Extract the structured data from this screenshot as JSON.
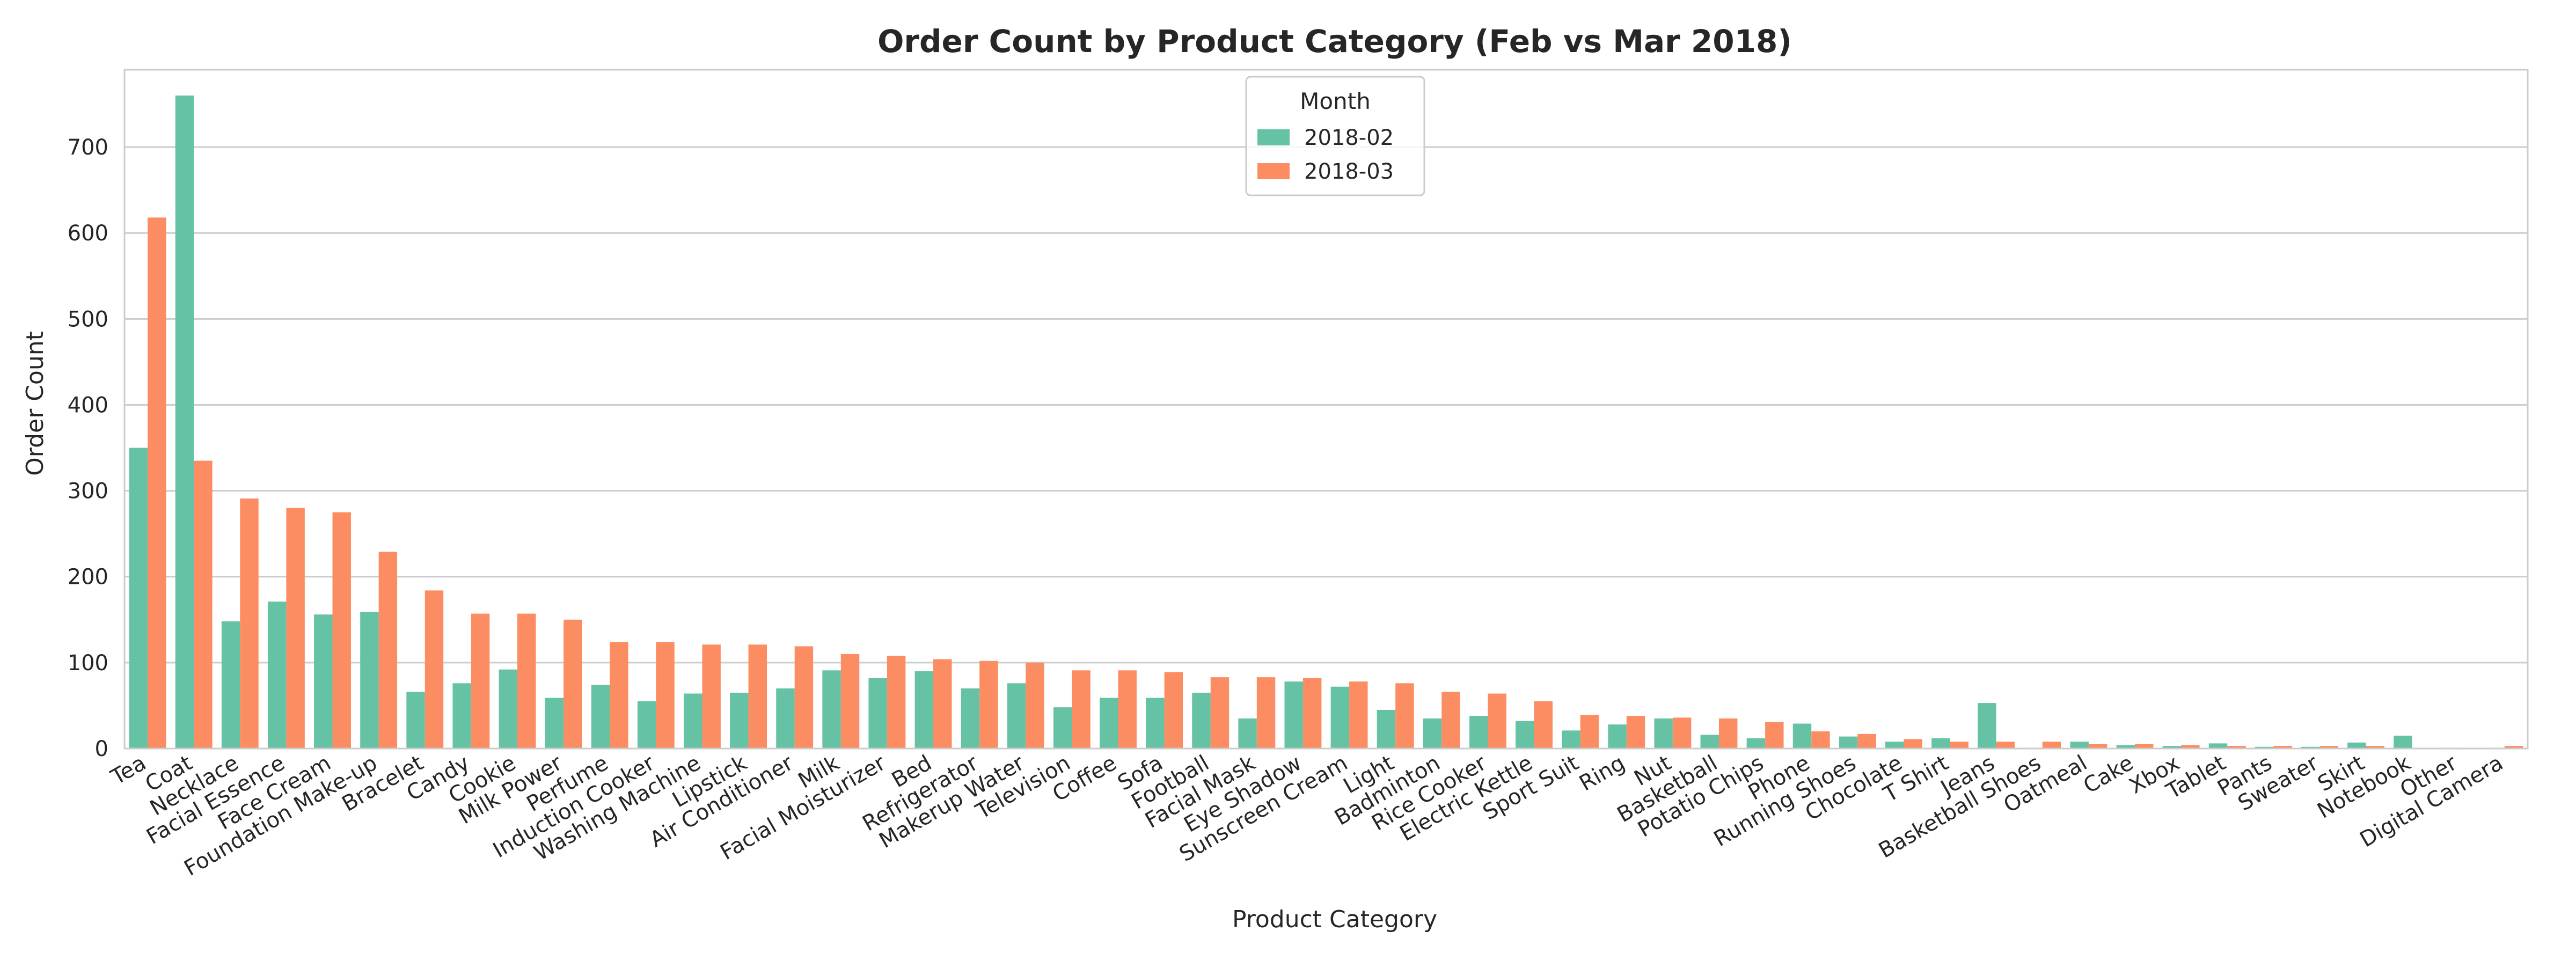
{
  "colors": {
    "feb": "#66c2a5",
    "mar": "#fc8d62",
    "grid": "#cccccc",
    "frame": "#cccccc",
    "text": "#262626"
  },
  "chart_data": {
    "type": "bar",
    "title": "Order Count by Product Category (Feb vs Mar 2018)",
    "xlabel": "Product Category",
    "ylabel": "Order Count",
    "ylim": [
      0,
      790
    ],
    "yticks": [
      0,
      100,
      200,
      300,
      400,
      500,
      600,
      700
    ],
    "grid": "horizontal",
    "legend": {
      "title": "Month",
      "placement": "top-center"
    },
    "categories": [
      "Tea",
      "Coat",
      "Necklace",
      "Facial Essence",
      "Face Cream",
      "Foundation Make-up",
      "Bracelet",
      "Candy",
      "Cookie",
      "Milk Power",
      "Perfume",
      "Induction Cooker",
      "Washing Machine",
      "Lipstick",
      "Air Conditioner",
      "Milk",
      "Facial Moisturizer",
      "Bed",
      "Refrigerator",
      "Makerup Water",
      "Television",
      "Coffee",
      "Sofa",
      "Football",
      "Facial Mask",
      "Eye Shadow",
      "Sunscreen Cream",
      "Light",
      "Badminton",
      "Rice Cooker",
      "Electric Kettle",
      "Sport Suit",
      "Ring",
      "Nut",
      "Basketball",
      "Potatio Chips",
      "Phone",
      "Running Shoes",
      "Chocolate",
      "T Shirt",
      "Jeans",
      "Basketball Shoes",
      "Oatmeal",
      "Cake",
      "Xbox",
      "Tablet",
      "Pants",
      "Sweater",
      "Skirt",
      "Notebook",
      "Other",
      "Digital Camera"
    ],
    "series": [
      {
        "name": "2018-02",
        "values": [
          350,
          760,
          148,
          171,
          156,
          159,
          66,
          76,
          92,
          59,
          74,
          55,
          64,
          65,
          70,
          91,
          82,
          90,
          70,
          76,
          48,
          59,
          59,
          65,
          35,
          78,
          72,
          45,
          35,
          38,
          32,
          21,
          28,
          35,
          16,
          12,
          29,
          14,
          8,
          12,
          53,
          1,
          8,
          4,
          3,
          6,
          2,
          2,
          7,
          15,
          1,
          1
        ]
      },
      {
        "name": "2018-03",
        "values": [
          618,
          335,
          291,
          280,
          275,
          229,
          184,
          157,
          157,
          150,
          124,
          124,
          121,
          121,
          119,
          110,
          108,
          104,
          102,
          100,
          91,
          91,
          89,
          83,
          83,
          82,
          78,
          76,
          66,
          64,
          55,
          39,
          38,
          36,
          35,
          31,
          20,
          17,
          11,
          8,
          8,
          8,
          5,
          5,
          4,
          3,
          3,
          3,
          3,
          1,
          1,
          3
        ]
      }
    ]
  }
}
